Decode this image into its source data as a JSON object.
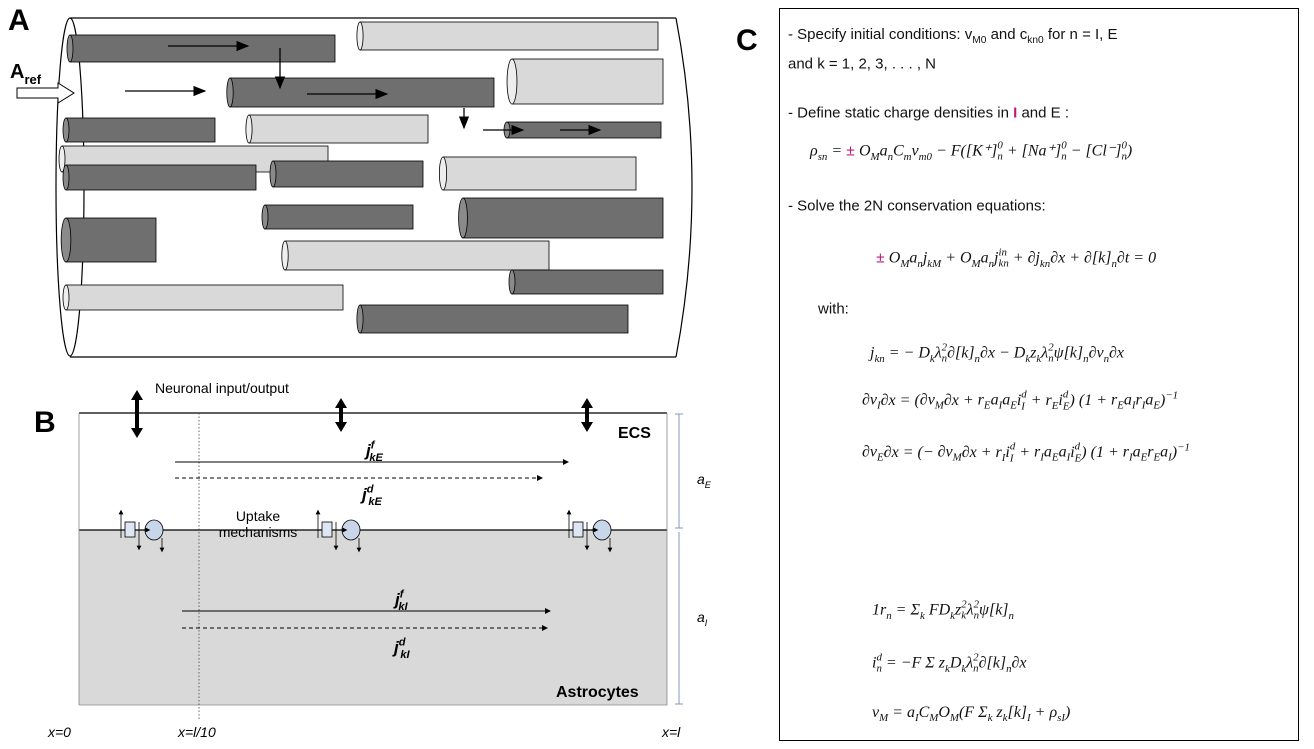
{
  "panel_labels": [
    "A",
    "B",
    "C"
  ],
  "panel_a": {
    "input_label": {
      "v": "A",
      "sub": "ref"
    }
  },
  "panel_b": {
    "io_label": "Neuronal input/output",
    "ecs_label": "ECS",
    "uptake_label": [
      "Uptake",
      "mechanisms"
    ],
    "fluxes": [
      {
        "v": "j",
        "sup": "f",
        "sub": "kE"
      },
      {
        "v": "j",
        "sup": "d",
        "sub": "kE"
      },
      {
        "v": "j",
        "sup": "f",
        "sub": "kI"
      },
      {
        "v": "j",
        "sup": "d",
        "sub": "kI"
      }
    ],
    "thickness": [
      {
        "v": "a",
        "sub": "E"
      },
      {
        "v": "a",
        "sub": "I"
      }
    ],
    "astro_label": "Astrocytes",
    "x_labels": [
      "x=0",
      "x=l/10",
      "x=l"
    ]
  },
  "panel_c": {
    "lines": [
      [
        "- Specify initial conditions:  ",
        {
          "v": "v",
          "sub": "M0"
        },
        "  and  ",
        {
          "v": "c",
          "sub": "kn0"
        },
        "  for  n = I, E"
      ],
      [
        "and  k = 1, 2, 3, . . . , N"
      ],
      [
        "- Define static charge densities in ",
        {
          "v": "I",
          "color": "#c0187a"
        },
        " and ",
        {
          "v": "E"
        },
        " :"
      ],
      [
        {
          "v": "ρ",
          "sub": "sn"
        },
        " = ",
        {
          "v": "±",
          "color": "#c0187a"
        },
        " ",
        {
          "num": [
            {
              "v": "O",
              "sub": "M"
            }
          ],
          "den": [
            {
              "v": "a",
              "sub": "n"
            }
          ]
        },
        {
          "v": "C",
          "sub": "m"
        },
        {
          "v": "v",
          "sub": "m0"
        },
        " − F([K⁺]",
        {
          "v": "",
          "sup": "0",
          "sub": "n"
        },
        " + [Na⁺]",
        {
          "v": "",
          "sup": "0",
          "sub": "n"
        },
        " − [Cl⁻]",
        {
          "v": "",
          "sup": "0",
          "sub": "n"
        },
        ")"
      ],
      [
        "- Solve the 2N conservation equations:"
      ],
      [
        {
          "v": "±",
          "color": "#c0187a"
        },
        " ",
        {
          "num": [
            {
              "v": "O",
              "sub": "M"
            }
          ],
          "den": [
            {
              "v": "a",
              "sub": "n"
            }
          ]
        },
        {
          "v": "j",
          "sub": "kM"
        },
        " + ",
        {
          "num": [
            {
              "v": "O",
              "sub": "M"
            }
          ],
          "den": [
            {
              "v": "a",
              "sub": "n"
            }
          ]
        },
        {
          "v": "j",
          "sup": "in",
          "sub": "kn"
        },
        " + ",
        {
          "num": [
            "∂",
            {
              "v": "j",
              "sub": "kn"
            }
          ],
          "den": [
            "∂x"
          ]
        },
        " + ",
        {
          "num": [
            "∂[k]",
            {
              "v": "",
              "sub": "n"
            }
          ],
          "den": [
            "∂t"
          ]
        },
        " = 0"
      ],
      [
        "with:"
      ],
      [
        {
          "v": "j",
          "sub": "kn"
        },
        " = − ",
        {
          "num": [
            {
              "v": "D",
              "sub": "k"
            }
          ],
          "den": [
            {
              "v": "λ",
              "sup": "2",
              "sub": "n"
            }
          ]
        },
        {
          "num": [
            "∂[k]",
            {
              "v": "",
              "sub": "n"
            }
          ],
          "den": [
            "∂x"
          ]
        },
        " − ",
        {
          "num": [
            {
              "v": "D",
              "sub": "k"
            },
            {
              "v": "z",
              "sub": "k"
            }
          ],
          "den": [
            {
              "v": "λ",
              "sup": "2",
              "sub": "n"
            },
            "ψ"
          ]
        },
        "[k]",
        {
          "v": "",
          "sub": "n"
        },
        {
          "num": [
            "∂",
            {
              "v": "v",
              "sub": "n"
            }
          ],
          "den": [
            "∂x"
          ]
        }
      ],
      [
        {
          "num": [
            "∂",
            {
              "v": "v",
              "sub": "I"
            }
          ],
          "den": [
            "∂x"
          ]
        },
        " = (",
        {
          "num": [
            "∂",
            {
              "v": "v",
              "sub": "M"
            }
          ],
          "den": [
            "∂x"
          ]
        },
        " + ",
        {
          "num": [
            {
              "v": "r",
              "sub": "E"
            },
            {
              "v": "a",
              "sub": "I"
            }
          ],
          "den": [
            {
              "v": "a",
              "sub": "E"
            }
          ]
        },
        {
          "v": "i",
          "sup": "d",
          "sub": "I"
        },
        " + ",
        {
          "v": "r",
          "sub": "E"
        },
        {
          "v": "i",
          "sup": "d",
          "sub": "E"
        },
        ") (1 + ",
        {
          "num": [
            {
              "v": "r",
              "sub": "E"
            },
            {
              "v": "a",
              "sub": "I"
            }
          ],
          "den": [
            {
              "v": "r",
              "sub": "I"
            },
            {
              "v": "a",
              "sub": "E"
            }
          ]
        },
        {
          "v": ")",
          "sup": "−1"
        }
      ],
      [
        {
          "num": [
            "∂",
            {
              "v": "v",
              "sub": "E"
            }
          ],
          "den": [
            "∂x"
          ]
        },
        " = (− ",
        {
          "num": [
            "∂",
            {
              "v": "v",
              "sub": "M"
            }
          ],
          "den": [
            "∂x"
          ]
        },
        " + ",
        {
          "v": "r",
          "sub": "I"
        },
        {
          "v": "i",
          "sup": "d",
          "sub": "I"
        },
        " + ",
        {
          "num": [
            {
              "v": "r",
              "sub": "I"
            },
            {
              "v": "a",
              "sub": "E"
            }
          ],
          "den": [
            {
              "v": "a",
              "sub": "I"
            }
          ]
        },
        {
          "v": "i",
          "sup": "d",
          "sub": "E"
        },
        ") (1 + ",
        {
          "num": [
            {
              "v": "r",
              "sub": "I"
            },
            {
              "v": "a",
              "sub": "E"
            }
          ],
          "den": [
            {
              "v": "r",
              "sub": "E"
            },
            {
              "v": "a",
              "sub": "I"
            }
          ]
        },
        {
          "v": ")",
          "sup": "−1"
        }
      ],
      [
        {
          "num": [
            "1"
          ],
          "den": [
            {
              "v": "r",
              "sub": "n"
            }
          ]
        },
        " = ",
        {
          "v": "Σ",
          "sub": "k"
        },
        " ",
        {
          "num": [
            "F",
            {
              "v": "D",
              "sub": "k"
            },
            {
              "v": "z",
              "sup": "2",
              "sub": "k"
            }
          ],
          "den": [
            {
              "v": "λ",
              "sup": "2",
              "sub": "n"
            },
            "ψ"
          ]
        },
        "[k]",
        {
          "v": "",
          "sub": "n"
        }
      ],
      [
        {
          "v": "i",
          "sup": "d",
          "sub": "n"
        },
        " = −F ",
        {
          "v": "Σ"
        },
        " ",
        {
          "num": [
            {
              "v": "z",
              "sub": "k"
            },
            {
              "v": "D",
              "sub": "k"
            }
          ],
          "den": [
            {
              "v": "λ",
              "sup": "2",
              "sub": "n"
            }
          ]
        },
        {
          "num": [
            "∂[k]",
            {
              "v": "",
              "sub": "n"
            }
          ],
          "den": [
            "∂x"
          ]
        }
      ],
      [
        {
          "v": "v",
          "sub": "M"
        },
        " = ",
        {
          "num": [
            {
              "v": "a",
              "sub": "I"
            }
          ],
          "den": [
            {
              "v": "C",
              "sub": "M"
            },
            {
              "v": "O",
              "sub": "M"
            }
          ]
        },
        "(F ",
        {
          "v": "Σ",
          "sub": "k"
        },
        " ",
        {
          "v": "z",
          "sub": "k"
        },
        "[k]",
        {
          "v": "",
          "sub": "I"
        },
        " + ",
        {
          "v": "ρ",
          "sub": "sI"
        },
        ")"
      ]
    ]
  }
}
